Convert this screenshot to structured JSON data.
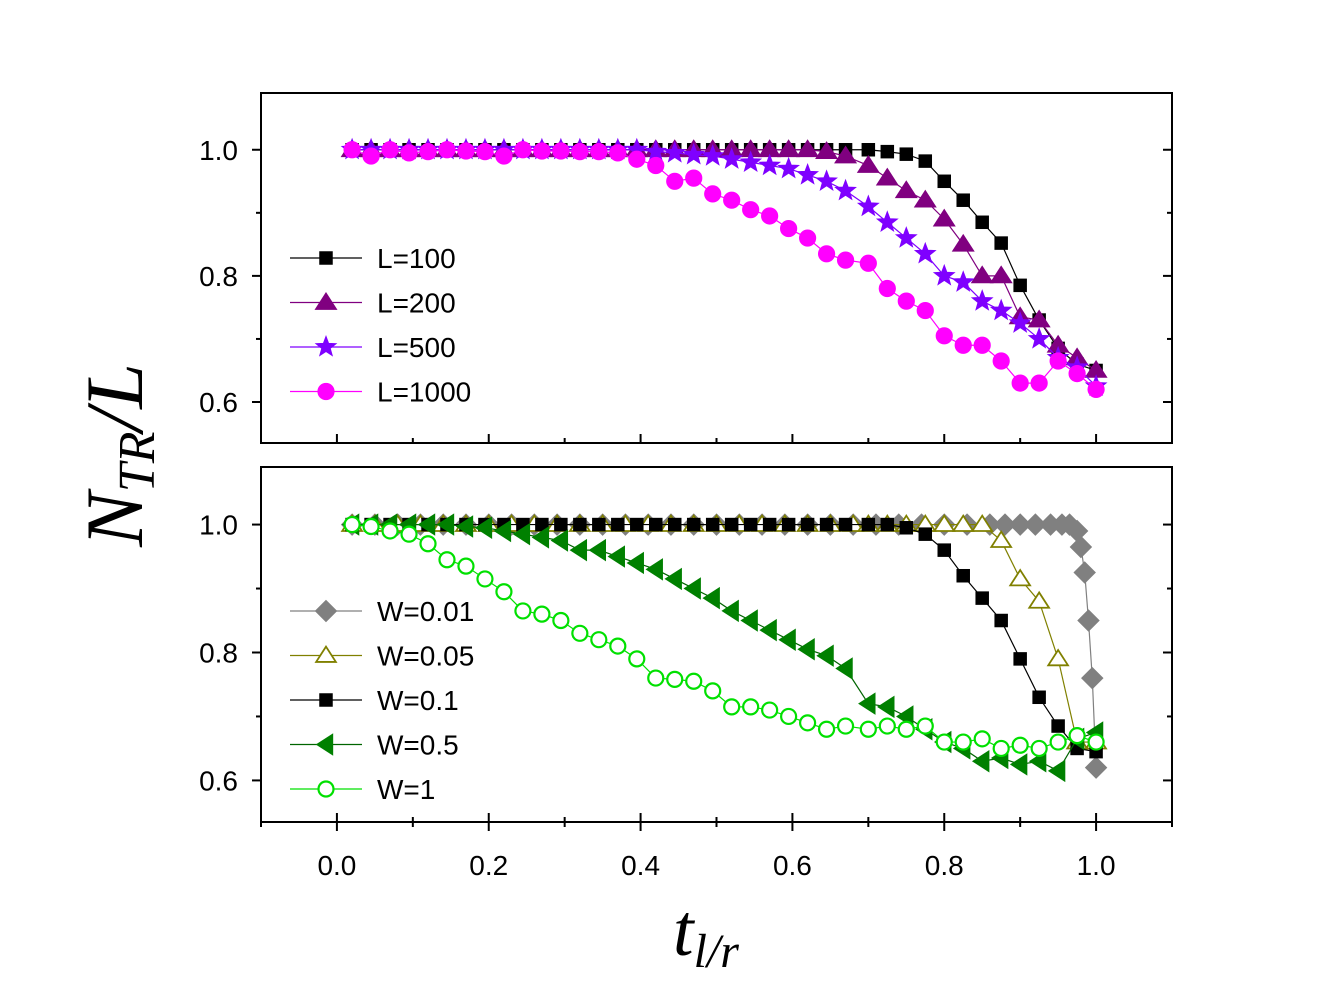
{
  "figure": {
    "ylabel_main": "N",
    "ylabel_sub": "TR",
    "ylabel_tail": "/L",
    "xlabel_main": "t",
    "xlabel_sub": "l/r"
  },
  "chart_data": [
    {
      "type": "line",
      "panel": "top",
      "xlim": [
        -0.1,
        1.1
      ],
      "ylim": [
        0.535,
        1.09
      ],
      "xticks": [
        0.0,
        0.2,
        0.4,
        0.6,
        0.8,
        1.0
      ],
      "xtick_labels": [
        "0.0",
        "0.2",
        "0.4",
        "0.6",
        "0.8",
        "1.0"
      ],
      "yticks": [
        0.6,
        0.8,
        1.0
      ],
      "ytick_labels": [
        "0.6",
        "0.8",
        "1.0"
      ],
      "legend_position": "center-left",
      "series": [
        {
          "name": "L=100",
          "marker": "square",
          "filled": true,
          "color": "#000000",
          "line_color": "#000000",
          "x": [
            0.02,
            0.045,
            0.07,
            0.095,
            0.12,
            0.145,
            0.17,
            0.195,
            0.22,
            0.245,
            0.27,
            0.295,
            0.32,
            0.345,
            0.37,
            0.395,
            0.42,
            0.445,
            0.47,
            0.495,
            0.52,
            0.545,
            0.57,
            0.595,
            0.62,
            0.645,
            0.67,
            0.7,
            0.725,
            0.75,
            0.775,
            0.8,
            0.825,
            0.85,
            0.875,
            0.9,
            0.925,
            0.95,
            0.975,
            1.0
          ],
          "y": [
            1.0,
            1.0,
            1.0,
            1.0,
            1.0,
            1.0,
            1.0,
            1.0,
            1.0,
            1.0,
            1.0,
            1.0,
            1.0,
            1.0,
            1.0,
            1.0,
            1.0,
            1.0,
            1.0,
            1.0,
            1.0,
            1.0,
            1.0,
            1.0,
            1.0,
            1.0,
            1.0,
            1.0,
            0.997,
            0.993,
            0.982,
            0.95,
            0.92,
            0.885,
            0.852,
            0.785,
            0.73,
            0.685,
            0.66,
            0.65
          ]
        },
        {
          "name": "L=200",
          "marker": "triangle-up",
          "filled": true,
          "color": "#800080",
          "line_color": "#800080",
          "x": [
            0.02,
            0.045,
            0.07,
            0.095,
            0.12,
            0.145,
            0.17,
            0.195,
            0.22,
            0.245,
            0.27,
            0.295,
            0.32,
            0.345,
            0.37,
            0.395,
            0.42,
            0.445,
            0.47,
            0.495,
            0.52,
            0.545,
            0.57,
            0.595,
            0.62,
            0.645,
            0.67,
            0.7,
            0.725,
            0.75,
            0.775,
            0.8,
            0.825,
            0.85,
            0.875,
            0.9,
            0.925,
            0.95,
            0.975,
            1.0
          ],
          "y": [
            1.0,
            1.0,
            1.0,
            1.0,
            1.0,
            1.0,
            1.0,
            1.0,
            1.0,
            1.0,
            1.0,
            1.0,
            1.0,
            1.0,
            1.0,
            1.0,
            1.0,
            1.0,
            1.0,
            1.0,
            1.0,
            1.0,
            1.0,
            1.0,
            1.0,
            0.997,
            0.99,
            0.975,
            0.955,
            0.935,
            0.92,
            0.89,
            0.85,
            0.8,
            0.8,
            0.735,
            0.73,
            0.69,
            0.67,
            0.65
          ]
        },
        {
          "name": "L=500",
          "marker": "star",
          "filled": true,
          "color": "#7F00FF",
          "line_color": "#7F00FF",
          "x": [
            0.02,
            0.045,
            0.07,
            0.095,
            0.12,
            0.145,
            0.17,
            0.195,
            0.22,
            0.245,
            0.27,
            0.295,
            0.32,
            0.345,
            0.37,
            0.395,
            0.42,
            0.445,
            0.47,
            0.495,
            0.52,
            0.545,
            0.57,
            0.595,
            0.62,
            0.645,
            0.67,
            0.7,
            0.725,
            0.75,
            0.775,
            0.8,
            0.825,
            0.85,
            0.875,
            0.9,
            0.925,
            0.95,
            0.975,
            1.0
          ],
          "y": [
            1.0,
            1.0,
            1.0,
            1.0,
            1.0,
            1.0,
            1.0,
            1.0,
            1.0,
            1.0,
            1.0,
            1.0,
            1.0,
            1.0,
            1.0,
            1.0,
            0.997,
            0.995,
            0.992,
            0.99,
            0.985,
            0.98,
            0.975,
            0.97,
            0.96,
            0.95,
            0.935,
            0.91,
            0.885,
            0.86,
            0.835,
            0.8,
            0.79,
            0.76,
            0.745,
            0.725,
            0.7,
            0.67,
            0.655,
            0.625
          ]
        },
        {
          "name": "L=1000",
          "marker": "circle",
          "filled": true,
          "color": "#FF00FF",
          "line_color": "#FF00FF",
          "x": [
            0.02,
            0.045,
            0.07,
            0.095,
            0.12,
            0.145,
            0.17,
            0.195,
            0.22,
            0.245,
            0.27,
            0.295,
            0.32,
            0.345,
            0.37,
            0.395,
            0.42,
            0.445,
            0.47,
            0.495,
            0.52,
            0.545,
            0.57,
            0.595,
            0.62,
            0.645,
            0.67,
            0.7,
            0.725,
            0.75,
            0.775,
            0.8,
            0.825,
            0.85,
            0.875,
            0.9,
            0.925,
            0.95,
            0.975,
            1.0
          ],
          "y": [
            1.0,
            0.99,
            1.0,
            0.995,
            0.997,
            1.0,
            0.998,
            0.997,
            0.99,
            1.0,
            0.998,
            0.998,
            0.997,
            0.997,
            0.995,
            0.985,
            0.975,
            0.95,
            0.955,
            0.93,
            0.92,
            0.905,
            0.895,
            0.875,
            0.86,
            0.835,
            0.825,
            0.82,
            0.78,
            0.76,
            0.745,
            0.705,
            0.69,
            0.69,
            0.665,
            0.63,
            0.63,
            0.665,
            0.645,
            0.62
          ]
        }
      ]
    },
    {
      "type": "line",
      "panel": "bottom",
      "xlim": [
        -0.1,
        1.1
      ],
      "ylim": [
        0.535,
        1.09
      ],
      "xticks": [
        0.0,
        0.2,
        0.4,
        0.6,
        0.8,
        1.0
      ],
      "xtick_labels": [
        "0.0",
        "0.2",
        "0.4",
        "0.6",
        "0.8",
        "1.0"
      ],
      "yticks": [
        0.6,
        0.8,
        1.0
      ],
      "ytick_labels": [
        "0.6",
        "0.8",
        "1.0"
      ],
      "legend_position": "bottom-left",
      "series": [
        {
          "name": "W=0.01",
          "marker": "diamond",
          "filled": true,
          "color": "#808080",
          "line_color": "#808080",
          "x": [
            0.02,
            0.05,
            0.08,
            0.11,
            0.14,
            0.17,
            0.2,
            0.23,
            0.26,
            0.29,
            0.32,
            0.35,
            0.38,
            0.41,
            0.44,
            0.47,
            0.5,
            0.53,
            0.56,
            0.59,
            0.62,
            0.65,
            0.68,
            0.71,
            0.74,
            0.77,
            0.8,
            0.83,
            0.86,
            0.88,
            0.9,
            0.92,
            0.94,
            0.955,
            0.965,
            0.975,
            0.98,
            0.985,
            0.99,
            0.995,
            1.0
          ],
          "y": [
            1.0,
            1.0,
            1.0,
            1.0,
            1.0,
            1.0,
            1.0,
            1.0,
            1.0,
            1.0,
            1.0,
            1.0,
            1.0,
            1.0,
            1.0,
            1.0,
            1.0,
            1.0,
            1.0,
            1.0,
            1.0,
            1.0,
            1.0,
            1.0,
            1.0,
            1.0,
            1.0,
            1.0,
            1.0,
            1.0,
            1.0,
            1.0,
            1.0,
            1.0,
            1.0,
            0.99,
            0.965,
            0.925,
            0.85,
            0.76,
            0.62
          ]
        },
        {
          "name": "W=0.05",
          "marker": "triangle-up",
          "filled": false,
          "color": "#808000",
          "line_color": "#808000",
          "x": [
            0.02,
            0.05,
            0.08,
            0.11,
            0.14,
            0.17,
            0.2,
            0.23,
            0.26,
            0.29,
            0.32,
            0.35,
            0.38,
            0.41,
            0.44,
            0.47,
            0.5,
            0.53,
            0.56,
            0.59,
            0.62,
            0.65,
            0.68,
            0.7,
            0.725,
            0.75,
            0.775,
            0.8,
            0.825,
            0.85,
            0.875,
            0.9,
            0.925,
            0.95,
            0.975,
            1.0
          ],
          "y": [
            1.0,
            1.0,
            1.0,
            1.0,
            1.0,
            1.0,
            1.0,
            1.0,
            1.0,
            1.0,
            1.0,
            1.0,
            1.0,
            1.0,
            1.0,
            1.0,
            1.0,
            1.0,
            1.0,
            1.0,
            1.0,
            1.0,
            1.0,
            1.0,
            1.0,
            1.0,
            1.0,
            1.0,
            1.0,
            1.0,
            0.975,
            0.915,
            0.88,
            0.79,
            0.66,
            0.66
          ]
        },
        {
          "name": "W=0.1",
          "marker": "square",
          "filled": true,
          "color": "#000000",
          "line_color": "#000000",
          "x": [
            0.02,
            0.045,
            0.07,
            0.095,
            0.12,
            0.145,
            0.17,
            0.195,
            0.22,
            0.245,
            0.27,
            0.295,
            0.32,
            0.345,
            0.37,
            0.395,
            0.42,
            0.445,
            0.47,
            0.495,
            0.52,
            0.545,
            0.57,
            0.595,
            0.62,
            0.645,
            0.67,
            0.7,
            0.725,
            0.75,
            0.775,
            0.8,
            0.825,
            0.85,
            0.875,
            0.9,
            0.925,
            0.95,
            0.975,
            1.0
          ],
          "y": [
            1.0,
            1.0,
            1.0,
            1.0,
            1.0,
            1.0,
            1.0,
            1.0,
            1.0,
            1.0,
            1.0,
            1.0,
            1.0,
            1.0,
            1.0,
            1.0,
            1.0,
            1.0,
            1.0,
            1.0,
            1.0,
            1.0,
            1.0,
            1.0,
            1.0,
            1.0,
            1.0,
            1.0,
            1.0,
            0.995,
            0.985,
            0.96,
            0.92,
            0.885,
            0.85,
            0.79,
            0.73,
            0.685,
            0.65,
            0.645
          ]
        },
        {
          "name": "W=0.5",
          "marker": "triangle-left",
          "filled": true,
          "color": "#008000",
          "line_color": "#006400",
          "x": [
            0.02,
            0.045,
            0.07,
            0.095,
            0.12,
            0.145,
            0.17,
            0.195,
            0.22,
            0.245,
            0.27,
            0.295,
            0.32,
            0.345,
            0.37,
            0.395,
            0.42,
            0.445,
            0.47,
            0.495,
            0.52,
            0.545,
            0.57,
            0.595,
            0.62,
            0.645,
            0.67,
            0.7,
            0.725,
            0.75,
            0.775,
            0.8,
            0.825,
            0.85,
            0.875,
            0.9,
            0.925,
            0.95,
            0.975,
            1.0
          ],
          "y": [
            1.0,
            1.0,
            1.0,
            1.0,
            1.0,
            1.0,
            0.997,
            0.995,
            0.99,
            0.985,
            0.98,
            0.975,
            0.96,
            0.96,
            0.95,
            0.94,
            0.93,
            0.915,
            0.9,
            0.885,
            0.865,
            0.85,
            0.835,
            0.82,
            0.805,
            0.795,
            0.775,
            0.72,
            0.715,
            0.7,
            0.68,
            0.66,
            0.65,
            0.63,
            0.635,
            0.625,
            0.63,
            0.615,
            0.665,
            0.675
          ]
        },
        {
          "name": "W=1",
          "marker": "circle",
          "filled": false,
          "color": "#00E000",
          "line_color": "#00E000",
          "x": [
            0.02,
            0.045,
            0.07,
            0.095,
            0.12,
            0.145,
            0.17,
            0.195,
            0.22,
            0.245,
            0.27,
            0.295,
            0.32,
            0.345,
            0.37,
            0.395,
            0.42,
            0.445,
            0.47,
            0.495,
            0.52,
            0.545,
            0.57,
            0.595,
            0.62,
            0.645,
            0.67,
            0.7,
            0.725,
            0.75,
            0.775,
            0.8,
            0.825,
            0.85,
            0.875,
            0.9,
            0.925,
            0.95,
            0.975,
            1.0
          ],
          "y": [
            1.0,
            0.997,
            0.99,
            0.985,
            0.97,
            0.945,
            0.935,
            0.915,
            0.895,
            0.865,
            0.86,
            0.85,
            0.83,
            0.82,
            0.81,
            0.79,
            0.76,
            0.758,
            0.755,
            0.74,
            0.715,
            0.715,
            0.71,
            0.7,
            0.69,
            0.68,
            0.685,
            0.68,
            0.685,
            0.68,
            0.685,
            0.66,
            0.66,
            0.665,
            0.65,
            0.655,
            0.65,
            0.66,
            0.67,
            0.66
          ]
        }
      ]
    }
  ]
}
